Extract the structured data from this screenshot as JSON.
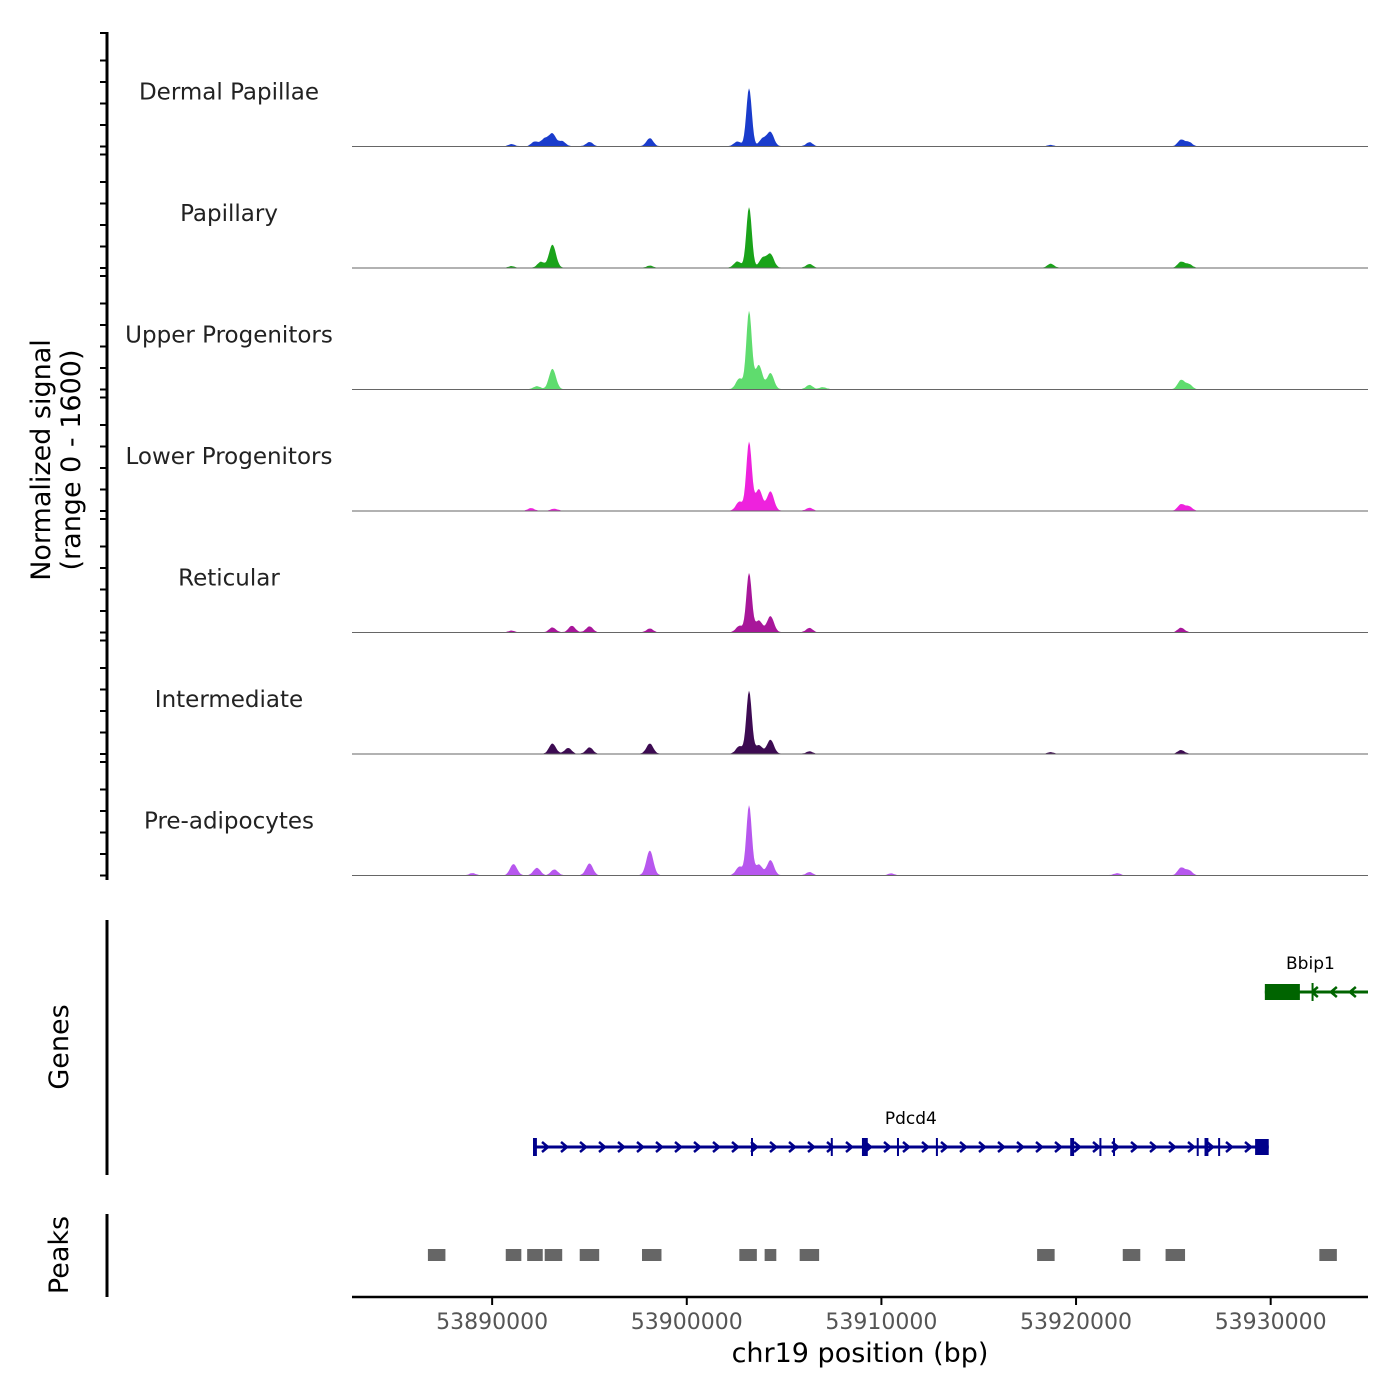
{
  "chart_data": {
    "type": "area",
    "title": "",
    "chromosome": "chr19",
    "xlabel": "chr19 position (bp)",
    "ylabel_line1": "Normalized signal",
    "ylabel_line2": "(range 0 - 1600)",
    "xlim": [
      53882800,
      53935000
    ],
    "x_ticks": [
      53890000,
      53900000,
      53910000,
      53920000,
      53930000
    ],
    "x_tick_labels": [
      "53890000",
      "53900000",
      "53910000",
      "53920000",
      "53930000"
    ],
    "ylim": [
      0,
      1600
    ],
    "tracks": [
      {
        "name": "Dermal Papillae",
        "color": "#1a3ccc",
        "peaks": [
          {
            "x": 53903200,
            "y": 1080
          },
          {
            "x": 53904300,
            "y": 260
          },
          {
            "x": 53893100,
            "y": 230
          },
          {
            "x": 53892700,
            "y": 140
          },
          {
            "x": 53892200,
            "y": 90
          },
          {
            "x": 53893600,
            "y": 95
          },
          {
            "x": 53898100,
            "y": 150
          },
          {
            "x": 53895000,
            "y": 80
          },
          {
            "x": 53906300,
            "y": 75
          },
          {
            "x": 53902600,
            "y": 90
          },
          {
            "x": 53903900,
            "y": 140
          },
          {
            "x": 53925400,
            "y": 120
          },
          {
            "x": 53925800,
            "y": 75
          },
          {
            "x": 53891000,
            "y": 40
          },
          {
            "x": 53918700,
            "y": 25
          }
        ]
      },
      {
        "name": "Papillary",
        "color": "#1aa31a",
        "peaks": [
          {
            "x": 53903200,
            "y": 1130
          },
          {
            "x": 53893100,
            "y": 430
          },
          {
            "x": 53904300,
            "y": 250
          },
          {
            "x": 53892500,
            "y": 110
          },
          {
            "x": 53902600,
            "y": 120
          },
          {
            "x": 53903900,
            "y": 180
          },
          {
            "x": 53906300,
            "y": 70
          },
          {
            "x": 53925400,
            "y": 110
          },
          {
            "x": 53925800,
            "y": 65
          },
          {
            "x": 53918700,
            "y": 75
          },
          {
            "x": 53898100,
            "y": 40
          },
          {
            "x": 53891000,
            "y": 30
          }
        ]
      },
      {
        "name": "Upper Progenitors",
        "color": "#5fdc6e",
        "peaks": [
          {
            "x": 53903200,
            "y": 1450
          },
          {
            "x": 53893100,
            "y": 380
          },
          {
            "x": 53904300,
            "y": 300
          },
          {
            "x": 53903700,
            "y": 450
          },
          {
            "x": 53902700,
            "y": 200
          },
          {
            "x": 53906300,
            "y": 80
          },
          {
            "x": 53925400,
            "y": 170
          },
          {
            "x": 53925800,
            "y": 90
          },
          {
            "x": 53892300,
            "y": 60
          },
          {
            "x": 53907000,
            "y": 40
          }
        ]
      },
      {
        "name": "Lower Progenitors",
        "color": "#ee22dd",
        "peaks": [
          {
            "x": 53903200,
            "y": 1280
          },
          {
            "x": 53903700,
            "y": 400
          },
          {
            "x": 53904300,
            "y": 360
          },
          {
            "x": 53902700,
            "y": 170
          },
          {
            "x": 53906300,
            "y": 55
          },
          {
            "x": 53925400,
            "y": 120
          },
          {
            "x": 53925800,
            "y": 80
          },
          {
            "x": 53892000,
            "y": 50
          },
          {
            "x": 53893200,
            "y": 40
          }
        ]
      },
      {
        "name": "Reticular",
        "color": "#a8169a",
        "peaks": [
          {
            "x": 53903200,
            "y": 1100
          },
          {
            "x": 53904300,
            "y": 300
          },
          {
            "x": 53903700,
            "y": 220
          },
          {
            "x": 53902700,
            "y": 120
          },
          {
            "x": 53893100,
            "y": 90
          },
          {
            "x": 53894100,
            "y": 120
          },
          {
            "x": 53895000,
            "y": 110
          },
          {
            "x": 53898100,
            "y": 70
          },
          {
            "x": 53906300,
            "y": 80
          },
          {
            "x": 53925400,
            "y": 85
          },
          {
            "x": 53891000,
            "y": 30
          }
        ]
      },
      {
        "name": "Intermediate",
        "color": "#3d0b52",
        "peaks": [
          {
            "x": 53903200,
            "y": 1170
          },
          {
            "x": 53904300,
            "y": 260
          },
          {
            "x": 53893100,
            "y": 190
          },
          {
            "x": 53893900,
            "y": 110
          },
          {
            "x": 53895000,
            "y": 120
          },
          {
            "x": 53898100,
            "y": 190
          },
          {
            "x": 53902700,
            "y": 140
          },
          {
            "x": 53903700,
            "y": 160
          },
          {
            "x": 53906300,
            "y": 45
          },
          {
            "x": 53925400,
            "y": 70
          },
          {
            "x": 53918700,
            "y": 30
          }
        ]
      },
      {
        "name": "Pre-adipocytes",
        "color": "#b757ee",
        "peaks": [
          {
            "x": 53903200,
            "y": 1300
          },
          {
            "x": 53898100,
            "y": 460
          },
          {
            "x": 53891100,
            "y": 210
          },
          {
            "x": 53895000,
            "y": 220
          },
          {
            "x": 53904300,
            "y": 280
          },
          {
            "x": 53903700,
            "y": 200
          },
          {
            "x": 53902700,
            "y": 160
          },
          {
            "x": 53892300,
            "y": 140
          },
          {
            "x": 53893200,
            "y": 110
          },
          {
            "x": 53906300,
            "y": 60
          },
          {
            "x": 53925400,
            "y": 140
          },
          {
            "x": 53925800,
            "y": 90
          },
          {
            "x": 53889000,
            "y": 40
          },
          {
            "x": 53910500,
            "y": 35
          },
          {
            "x": 53922100,
            "y": 40
          }
        ]
      }
    ],
    "genes": {
      "label": "Genes",
      "items": [
        {
          "name": "Bbip1",
          "strand": "-",
          "start": 53929700,
          "end": 53935000,
          "row": 1,
          "color": "#006400",
          "exons": [
            [
              53929700,
              53931500
            ],
            [
              53932100,
              53932200
            ]
          ]
        },
        {
          "name": "Pdcd4",
          "strand": "+",
          "start": 53892100,
          "end": 53929900,
          "row": 2,
          "color": "#00008b",
          "exons": [
            [
              53892100,
              53892300
            ],
            [
              53903300,
              53903400
            ],
            [
              53907400,
              53907500
            ],
            [
              53909000,
              53909300
            ],
            [
              53910800,
              53910900
            ],
            [
              53912800,
              53912900
            ],
            [
              53919700,
              53919900
            ],
            [
              53921200,
              53921300
            ],
            [
              53921900,
              53922000
            ],
            [
              53926200,
              53926300
            ],
            [
              53926600,
              53926800
            ],
            [
              53927300,
              53927400
            ],
            [
              53929200,
              53929900
            ]
          ]
        }
      ]
    },
    "peaks_track": {
      "label": "Peaks",
      "color": "#666666",
      "regions": [
        [
          53886700,
          53887600
        ],
        [
          53890700,
          53891500
        ],
        [
          53891800,
          53892600
        ],
        [
          53892700,
          53893600
        ],
        [
          53894500,
          53895500
        ],
        [
          53897700,
          53898700
        ],
        [
          53902700,
          53903600
        ],
        [
          53904000,
          53904600
        ],
        [
          53905800,
          53906800
        ],
        [
          53918000,
          53918900
        ],
        [
          53922400,
          53923300
        ],
        [
          53924600,
          53925600
        ],
        [
          53932500,
          53933400
        ]
      ]
    }
  }
}
